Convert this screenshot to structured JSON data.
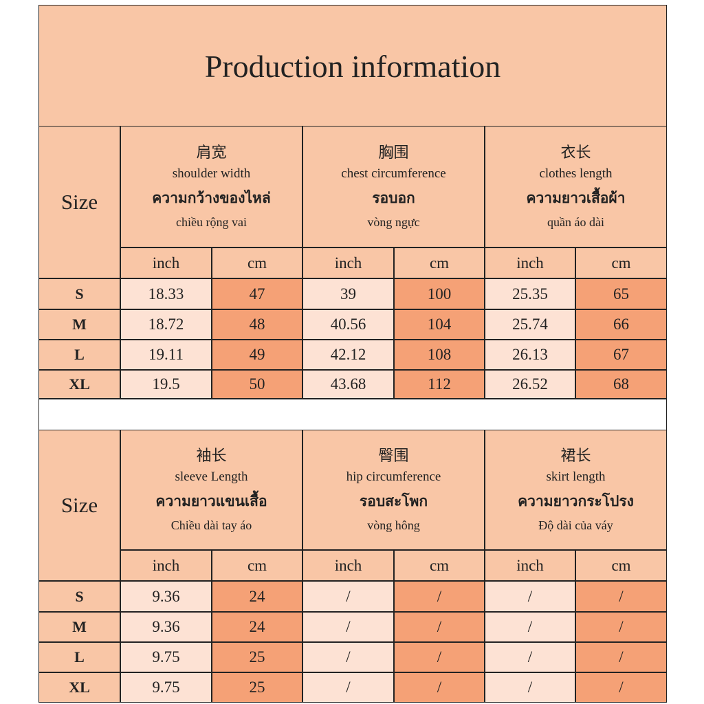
{
  "title": "Production information",
  "tables": [
    {
      "size_label": "Size",
      "groups": [
        {
          "lines": [
            "肩宽",
            "shoulder width",
            "ความกว้างของไหล่",
            "chiều rộng vai"
          ]
        },
        {
          "lines": [
            "胸围",
            "chest circumference",
            "รอบอก",
            "vòng ngực"
          ]
        },
        {
          "lines": [
            "衣长",
            "clothes length",
            "ความยาวเสื้อผ้า",
            "quần áo dài"
          ]
        }
      ],
      "sub_headers": [
        "inch",
        "cm",
        "inch",
        "cm",
        "inch",
        "cm"
      ],
      "rows": [
        {
          "size": "S",
          "cells": [
            "18.33",
            "47",
            "39",
            "100",
            "25.35",
            "65"
          ]
        },
        {
          "size": "M",
          "cells": [
            "18.72",
            "48",
            "40.56",
            "104",
            "25.74",
            "66"
          ]
        },
        {
          "size": "L",
          "cells": [
            "19.11",
            "49",
            "42.12",
            "108",
            "26.13",
            "67"
          ]
        },
        {
          "size": "XL",
          "cells": [
            "19.5",
            "50",
            "43.68",
            "112",
            "26.52",
            "68"
          ]
        }
      ]
    },
    {
      "size_label": "Size",
      "groups": [
        {
          "lines": [
            "袖长",
            "sleeve Length",
            "ความยาวแขนเสื้อ",
            "Chiều dài tay áo"
          ]
        },
        {
          "lines": [
            "臀围",
            "hip circumference",
            "รอบสะโพก",
            "vòng hông"
          ]
        },
        {
          "lines": [
            "裙长",
            "skirt length",
            "ความยาวกระโปรง",
            "Độ dài của váy"
          ]
        }
      ],
      "sub_headers": [
        "inch",
        "cm",
        "inch",
        "cm",
        "inch",
        "cm"
      ],
      "rows": [
        {
          "size": "S",
          "cells": [
            "9.36",
            "24",
            "/",
            "/",
            "/",
            "/"
          ]
        },
        {
          "size": "M",
          "cells": [
            "9.36",
            "24",
            "/",
            "/",
            "/",
            "/"
          ]
        },
        {
          "size": "L",
          "cells": [
            "9.75",
            "25",
            "/",
            "/",
            "/",
            "/"
          ]
        },
        {
          "size": "XL",
          "cells": [
            "9.75",
            "25",
            "/",
            "/",
            "/",
            "/"
          ]
        }
      ]
    }
  ]
}
